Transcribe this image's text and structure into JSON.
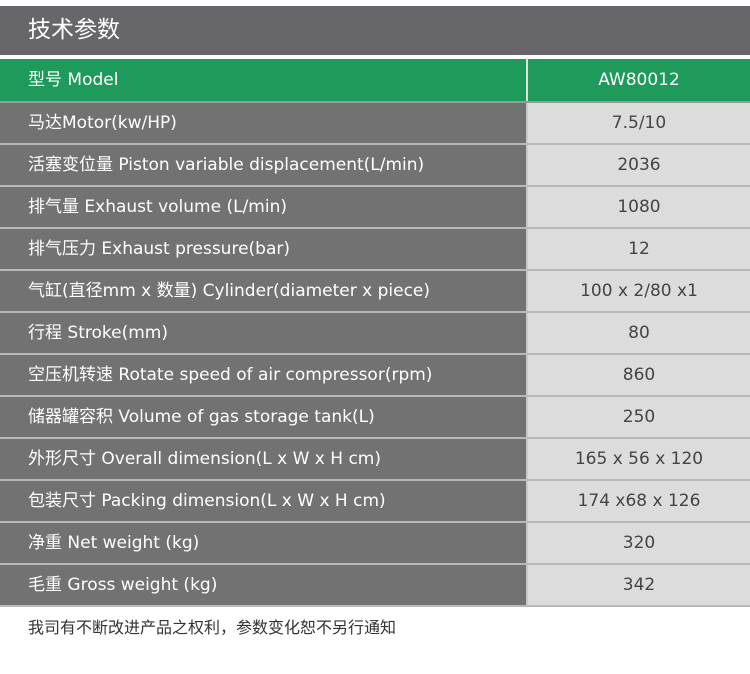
{
  "title": "技术参数",
  "header": {
    "label": "型号 Model",
    "value": "AW80012"
  },
  "rows": [
    {
      "label": "马达Motor(kw/HP)",
      "value": "7.5/10"
    },
    {
      "label": "活塞变位量 Piston variable displacement(L/min)",
      "value": "2036"
    },
    {
      "label": "排气量 Exhaust volume (L/min)",
      "value": "1080"
    },
    {
      "label": "排气压力 Exhaust pressure(bar)",
      "value": "12"
    },
    {
      "label": "气缸(直径mm x 数量) Cylinder(diameter x piece)",
      "value": "100 x 2/80 x1"
    },
    {
      "label": "行程 Stroke(mm)",
      "value": "80"
    },
    {
      "label": "空压机转速 Rotate speed of air compressor(rpm)",
      "value": "860"
    },
    {
      "label": "储器罐容积 Volume of gas storage tank(L)",
      "value": "250"
    },
    {
      "label": "外形尺寸 Overall dimension(L x W x H cm)",
      "value": "165 x 56 x 120"
    },
    {
      "label": "包装尺寸 Packing dimension(L x W x H cm)",
      "value": "174 x68 x 126"
    },
    {
      "label": "净重 Net weight (kg)",
      "value": "320"
    },
    {
      "label": "毛重 Gross weight (kg)",
      "value": "342"
    }
  ],
  "footer": "我司有不断改进产品之权利，参数变化恕不另行通知",
  "colors": {
    "header_bg": "#67666b",
    "accent_green": "#1e9a5a",
    "label_bg": "#727272",
    "value_bg": "#dcdcdc"
  }
}
